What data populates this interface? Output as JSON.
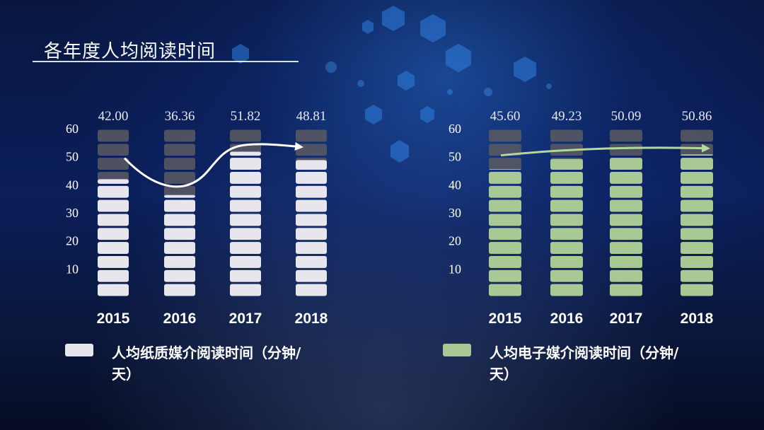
{
  "page": {
    "title": "各年度人均阅读时间"
  },
  "colors": {
    "paper": "#e6e6ec",
    "electronic": "#a8c994",
    "empty_segment": "#5a5a62",
    "paper_arrow": "#ffffff",
    "electronic_arrow": "#b4d89c"
  },
  "chart_data": [
    {
      "type": "bar",
      "categories": [
        "2015",
        "2016",
        "2017",
        "2018"
      ],
      "values": [
        42.0,
        36.36,
        51.82,
        48.81
      ],
      "value_labels": [
        "42.00",
        "36.36",
        "51.82",
        "48.81"
      ],
      "yticks": [
        "10",
        "20",
        "30",
        "40",
        "50",
        "60"
      ],
      "ylim": [
        0,
        60
      ],
      "legend": "人均纸质媒介阅读时间（分钟/天）",
      "legend_lines": [
        "人均纸质媒介阅读时间（分钟/",
        "天）"
      ],
      "legend_position": "bottom",
      "trend_arrow": true
    },
    {
      "type": "bar",
      "categories": [
        "2015",
        "2016",
        "2017",
        "2018"
      ],
      "values": [
        45.6,
        49.23,
        50.09,
        50.86
      ],
      "value_labels": [
        "45.60",
        "49.23",
        "50.09",
        "50.86"
      ],
      "yticks": [
        "10",
        "20",
        "30",
        "40",
        "50",
        "60"
      ],
      "ylim": [
        0,
        60
      ],
      "legend": "人均电子媒介阅读时间（分钟/天）",
      "legend_lines": [
        "人均电子媒介阅读时间（分钟/",
        "天）"
      ],
      "legend_position": "bottom",
      "trend_arrow": true
    }
  ]
}
